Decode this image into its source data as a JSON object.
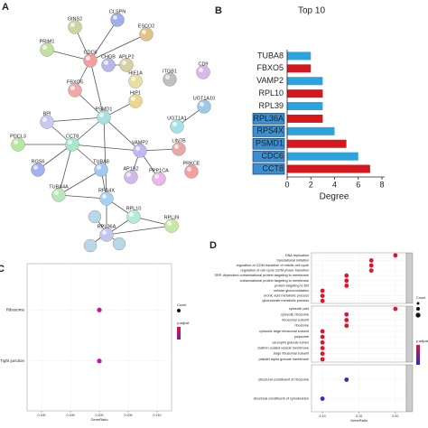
{
  "panels": [
    "A",
    "B",
    "C",
    "D"
  ],
  "network": {
    "nodes": [
      "CLSPN",
      "GINS2",
      "ESCO2",
      "PRIM1",
      "CDC6",
      "CHGB",
      "APLP2",
      "HIF1A",
      "ITGB1",
      "CD9",
      "FBXO5",
      "UGT1A10",
      "HIP1",
      "PSMD1",
      "BPI",
      "UGT1A1",
      "CCT8",
      "PDCL3",
      "VAMP2",
      "LIN7B",
      "TUBA8",
      "AP1S2",
      "PPP1CA",
      "PRKCE",
      "RGS6",
      "TUBA4A",
      "RPS4X",
      "RPL10",
      "RPL39",
      "RPL36A"
    ]
  },
  "chart_data": [
    {
      "type": "bar",
      "orientation": "horizontal",
      "title": "Top 10",
      "xlabel": "Degree",
      "categories": [
        "TUBA8",
        "FBXO5",
        "VAMP2",
        "RPL10",
        "RPL39",
        "RPL36A",
        "RPS4X",
        "PSMD1",
        "CDC6",
        "CCT8"
      ],
      "values": [
        2,
        2,
        3,
        3,
        3,
        3,
        4,
        5,
        6,
        7
      ],
      "colors": [
        "#2aa3e0",
        "#d6181e",
        "#2aa3e0",
        "#d6181e",
        "#2aa3e0",
        "#d6181e",
        "#2aa3e0",
        "#d6181e",
        "#2aa3e0",
        "#d6181e"
      ],
      "label_highlight": [
        false,
        false,
        false,
        false,
        false,
        true,
        true,
        true,
        true,
        true
      ],
      "xlim": [
        0,
        8
      ],
      "xticks": [
        0,
        2,
        4,
        6,
        8
      ]
    },
    {
      "type": "dot",
      "xlabel": "GeneRatio",
      "legend_titles": [
        "Count",
        "p.adjust"
      ],
      "facets": [
        {
          "categories": [
            "Ribosome",
            "Tight junction"
          ],
          "values": [
            0.2,
            0.2
          ],
          "colors": [
            "#c8179e",
            "#c8179e"
          ]
        }
      ],
      "xlim": [
        0.1875,
        0.2125
      ],
      "xticks": [
        {
          "value": 0.19,
          "label": "0.190"
        },
        {
          "value": 0.195,
          "label": "0.195"
        },
        {
          "value": 0.2,
          "label": "0.200"
        },
        {
          "value": 0.205,
          "label": "0.205"
        },
        {
          "value": 0.21,
          "label": "0.210"
        }
      ]
    },
    {
      "type": "dot",
      "xlabel": "GeneRatio",
      "legend_titles": [
        "Count",
        "p.adjust"
      ],
      "facets": [
        {
          "categories": [
            "DNA replication",
            "translational initiation",
            "regulation of G2/M transition of mitotic cell cycle",
            "regulation of cell cycle G2/M phase transition",
            "SRP-dependent cotranslational protein targeting to membrane",
            "cotranslational protein targeting to membrane",
            "protein targeting to ER",
            "cellular glucuronidation",
            "uronic acid metabolic process",
            "glucuronate metabolic process"
          ],
          "values": [
            0.2,
            0.167,
            0.167,
            0.167,
            0.133,
            0.133,
            0.133,
            0.1,
            0.1,
            0.1
          ],
          "colors": [
            "#e8112d",
            "#e8112d",
            "#e8112d",
            "#e8112d",
            "#e8112d",
            "#e8112d",
            "#e8112d",
            "#e8112d",
            "#e8112d",
            "#e8112d"
          ]
        },
        {
          "categories": [
            "cytosolic part",
            "cytosolic ribosome",
            "ribosomal subunit",
            "ribosome",
            "cytosolic large ribosomal subunit",
            "polysome",
            "azurophil granule lumen",
            "clathrin-coated vesicle membrane",
            "large ribosomal subunit",
            "platelet alpha granule membrane"
          ],
          "values": [
            0.2,
            0.133,
            0.133,
            0.133,
            0.1,
            0.1,
            0.1,
            0.1,
            0.1,
            0.1
          ],
          "colors": [
            "#e8112d",
            "#e8112d",
            "#e8112d",
            "#e8112d",
            "#e8112d",
            "#e8112d",
            "#e8112d",
            "#e8112d",
            "#e8112d",
            "#e8112d"
          ]
        },
        {
          "categories": [
            "structural constituent of ribosome",
            "structural constituent of cytoskeleton"
          ],
          "values": [
            0.133,
            0.1
          ],
          "colors": [
            "#2a2ad8",
            "#2a2ad8"
          ]
        }
      ],
      "xlim": [
        0.085,
        0.215
      ],
      "xticks": [
        {
          "value": 0.1,
          "label": "0.10"
        },
        {
          "value": 0.15,
          "label": "0.15"
        },
        {
          "value": 0.2,
          "label": "0.20"
        }
      ]
    }
  ]
}
